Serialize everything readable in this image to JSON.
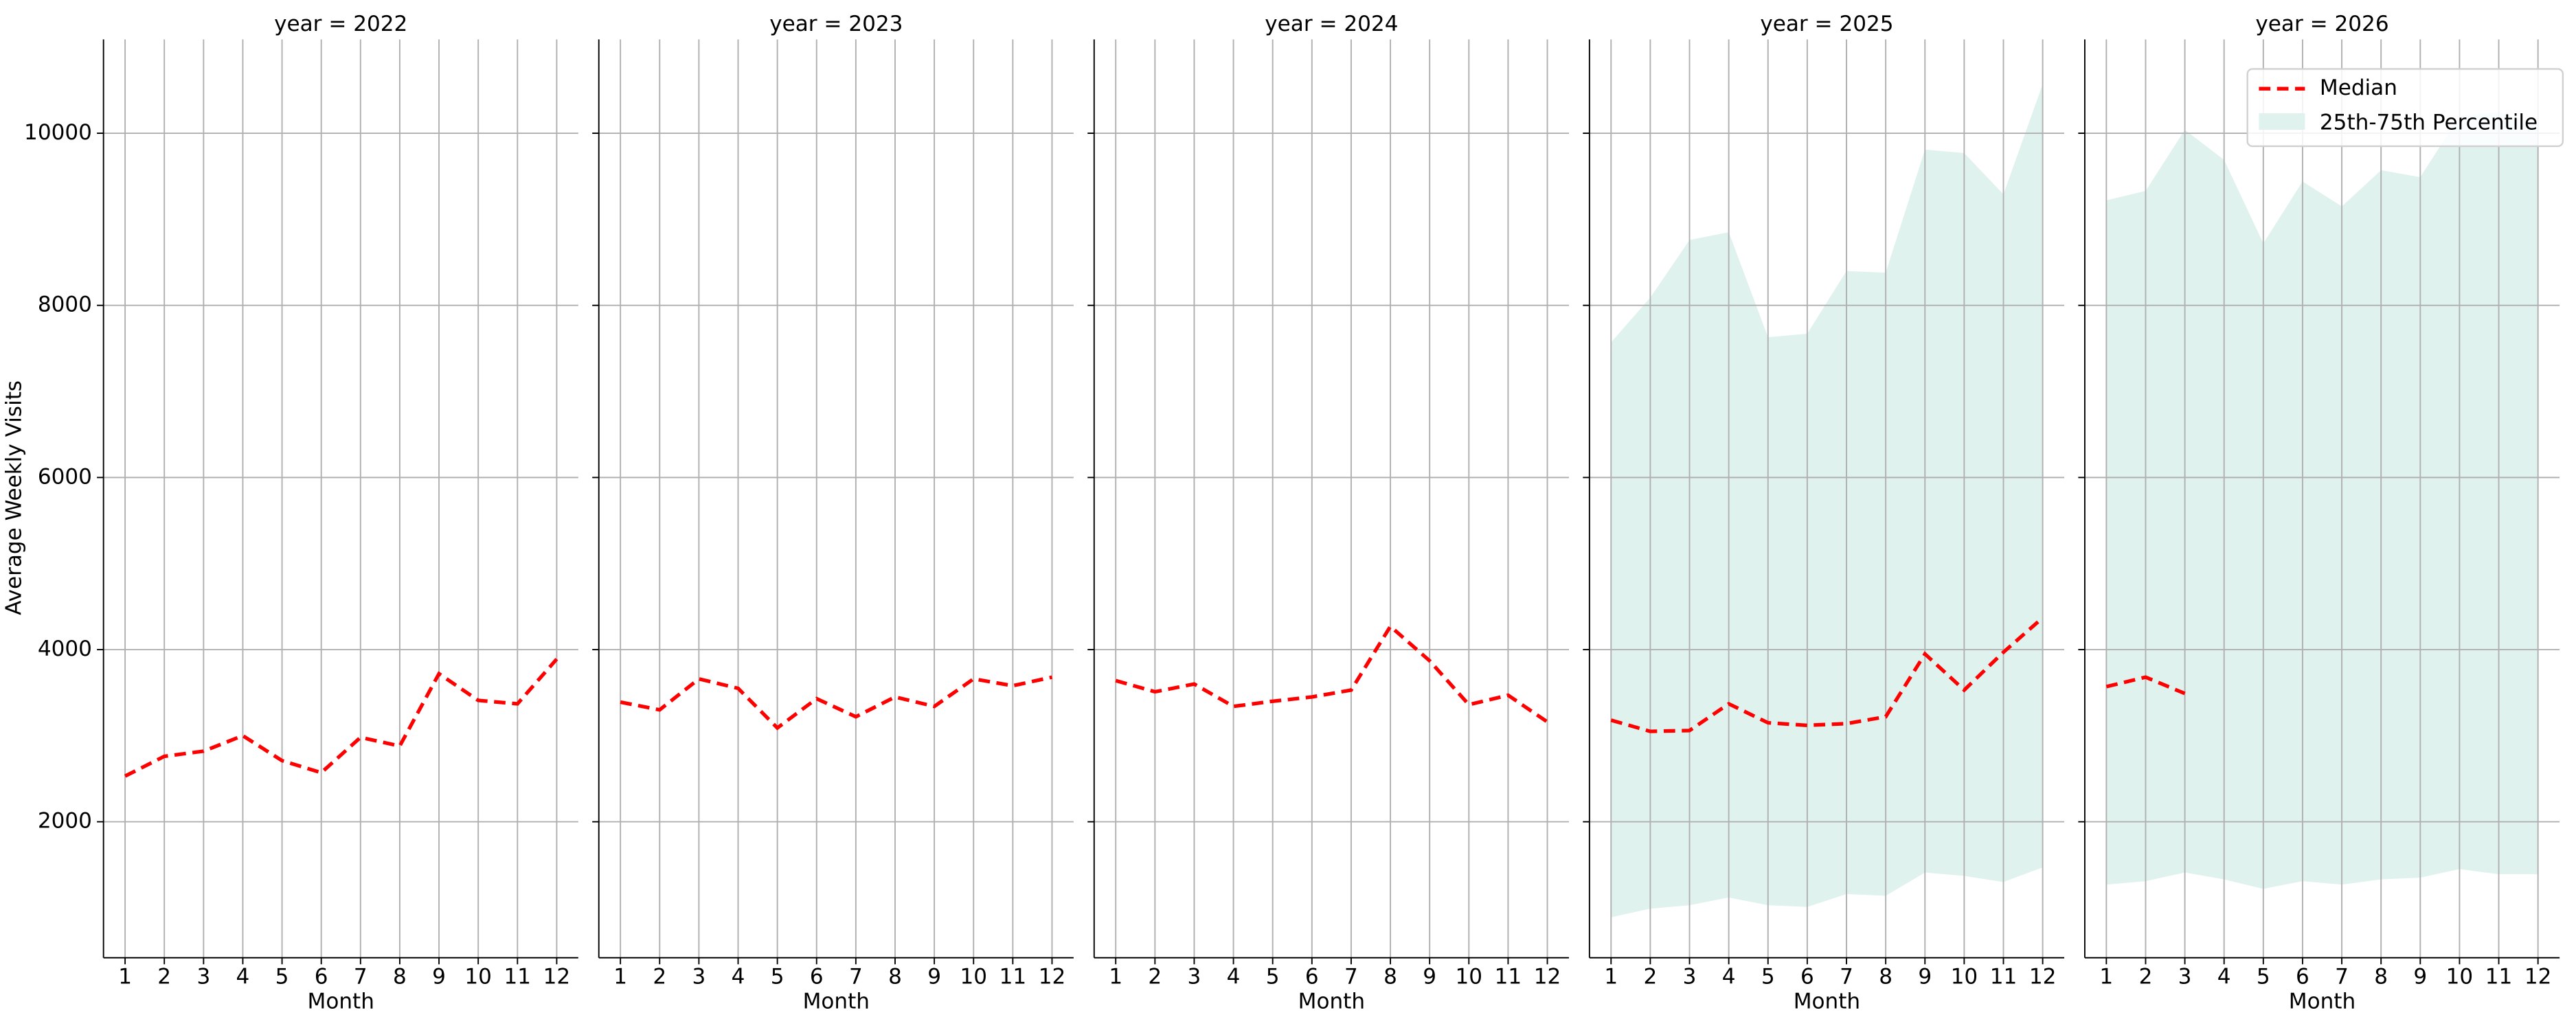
{
  "chart_data": {
    "type": "line",
    "ylabel": "Average Weekly Visits",
    "xlabel": "Month",
    "x": [
      1,
      2,
      3,
      4,
      5,
      6,
      7,
      8,
      9,
      10,
      11,
      12
    ],
    "xlim": [
      0.45,
      12.55
    ],
    "ylim": [
      420,
      11090
    ],
    "yticks": [
      2000,
      4000,
      6000,
      8000,
      10000
    ],
    "grid": true,
    "legend_position": "upper right",
    "legend": [
      {
        "name": "Median",
        "color": "#ff0000"
      },
      {
        "name": "25th-75th Percentile",
        "color": "#dff2ed"
      }
    ],
    "panels": [
      {
        "title": "year = 2022",
        "median": [
          2530,
          2760,
          2820,
          3000,
          2710,
          2570,
          2980,
          2880,
          3720,
          3410,
          3370,
          3890
        ]
      },
      {
        "title": "year = 2023",
        "median": [
          3390,
          3300,
          3660,
          3550,
          3090,
          3430,
          3220,
          3450,
          3340,
          3660,
          3580,
          3680
        ]
      },
      {
        "title": "year = 2024",
        "median": [
          3640,
          3510,
          3600,
          3340,
          3400,
          3450,
          3530,
          4270,
          3870,
          3360,
          3470,
          3160
        ]
      },
      {
        "title": "year = 2025",
        "median": [
          3180,
          3050,
          3060,
          3370,
          3150,
          3120,
          3140,
          3220,
          3950,
          3530,
          3970,
          4370
        ],
        "p75": [
          7570,
          8090,
          8760,
          8850,
          7630,
          7670,
          8400,
          8380,
          9810,
          9770,
          9290,
          10570
        ],
        "p25": [
          890,
          990,
          1030,
          1120,
          1030,
          1010,
          1160,
          1140,
          1410,
          1370,
          1300,
          1470
        ]
      },
      {
        "title": "year = 2026",
        "median": [
          3570,
          3680,
          3490,
          null,
          null,
          null,
          null,
          null,
          null,
          null,
          null,
          null
        ],
        "p75": [
          9220,
          9330,
          10040,
          9690,
          8720,
          9440,
          9150,
          9570,
          9490,
          10200,
          10250,
          10100
        ],
        "p25": [
          1270,
          1310,
          1410,
          1330,
          1220,
          1310,
          1270,
          1330,
          1350,
          1450,
          1390,
          1390
        ]
      }
    ]
  }
}
